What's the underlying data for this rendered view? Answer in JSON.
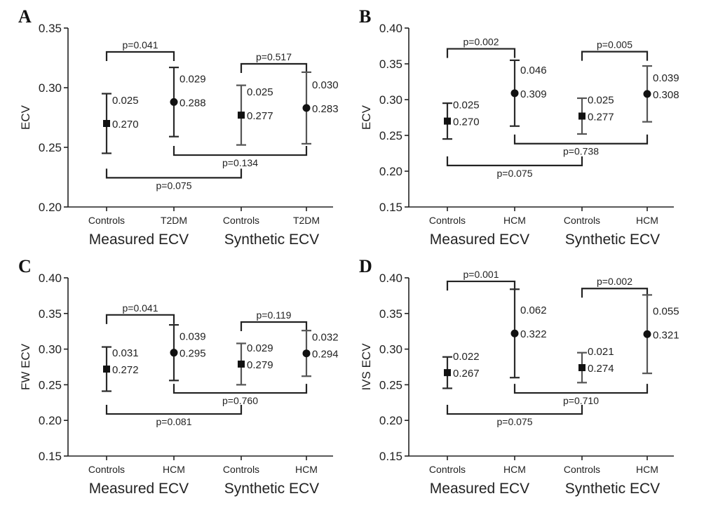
{
  "chart_data": [
    {
      "type": "scatter",
      "panel": "A",
      "ylabel": "ECV",
      "ylim": [
        0.2,
        0.35
      ],
      "yticks": [
        "0.20",
        "0.25",
        "0.30",
        "0.35"
      ],
      "categories": [
        "Controls",
        "T2DM",
        "Controls",
        "T2DM"
      ],
      "groups": [
        "Measured ECV",
        "Synthetic ECV"
      ],
      "points": [
        {
          "mean": 0.27,
          "sd": 0.025,
          "mean_label": "0.270",
          "sd_label": "0.025",
          "marker": "square",
          "color": "#2a2a2a"
        },
        {
          "mean": 0.288,
          "sd": 0.029,
          "mean_label": "0.288",
          "sd_label": "0.029",
          "marker": "circle",
          "color": "#2a2a2a"
        },
        {
          "mean": 0.277,
          "sd": 0.025,
          "mean_label": "0.277",
          "sd_label": "0.025",
          "marker": "square",
          "color": "#555555"
        },
        {
          "mean": 0.283,
          "sd": 0.03,
          "mean_label": "0.283",
          "sd_label": "0.030",
          "marker": "circle",
          "color": "#555555"
        }
      ],
      "comparisons": [
        {
          "from": 0,
          "to": 1,
          "label": "p=0.041",
          "level": 0.33,
          "dir": "up"
        },
        {
          "from": 2,
          "to": 3,
          "label": "p=0.517",
          "level": 0.32,
          "dir": "up"
        },
        {
          "from": 1,
          "to": 3,
          "label": "p=0.134",
          "level": 0.2435,
          "dir": "down"
        },
        {
          "from": 0,
          "to": 2,
          "label": "p=0.075",
          "level": 0.2245,
          "dir": "down"
        }
      ]
    },
    {
      "type": "scatter",
      "panel": "B",
      "ylabel": "ECV",
      "ylim": [
        0.15,
        0.4
      ],
      "yticks": [
        "0.15",
        "0.20",
        "0.25",
        "0.30",
        "0.35",
        "0.40"
      ],
      "categories": [
        "Controls",
        "HCM",
        "Controls",
        "HCM"
      ],
      "groups": [
        "Measured ECV",
        "Synthetic ECV"
      ],
      "points": [
        {
          "mean": 0.27,
          "sd": 0.025,
          "mean_label": "0.270",
          "sd_label": "0.025",
          "marker": "square",
          "color": "#2a2a2a"
        },
        {
          "mean": 0.309,
          "sd": 0.046,
          "mean_label": "0.309",
          "sd_label": "0.046",
          "marker": "circle",
          "color": "#2a2a2a"
        },
        {
          "mean": 0.277,
          "sd": 0.025,
          "mean_label": "0.277",
          "sd_label": "0.025",
          "marker": "square",
          "color": "#555555"
        },
        {
          "mean": 0.308,
          "sd": 0.039,
          "mean_label": "0.308",
          "sd_label": "0.039",
          "marker": "circle",
          "color": "#555555"
        }
      ],
      "comparisons": [
        {
          "from": 0,
          "to": 1,
          "label": "p=0.002",
          "level": 0.371,
          "dir": "up"
        },
        {
          "from": 2,
          "to": 3,
          "label": "p=0.005",
          "level": 0.367,
          "dir": "up"
        },
        {
          "from": 1,
          "to": 3,
          "label": "p=0.738",
          "level": 0.2385,
          "dir": "down"
        },
        {
          "from": 0,
          "to": 2,
          "label": "p=0.075",
          "level": 0.208,
          "dir": "down"
        }
      ]
    },
    {
      "type": "scatter",
      "panel": "C",
      "ylabel": "FW ECV",
      "ylim": [
        0.15,
        0.4
      ],
      "yticks": [
        "0.15",
        "0.20",
        "0.25",
        "0.30",
        "0.35",
        "0.40"
      ],
      "categories": [
        "Controls",
        "HCM",
        "Controls",
        "HCM"
      ],
      "groups": [
        "Measured ECV",
        "Synthetic ECV"
      ],
      "points": [
        {
          "mean": 0.272,
          "sd": 0.031,
          "mean_label": "0.272",
          "sd_label": "0.031",
          "marker": "square",
          "color": "#2a2a2a"
        },
        {
          "mean": 0.295,
          "sd": 0.039,
          "mean_label": "0.295",
          "sd_label": "0.039",
          "marker": "circle",
          "color": "#2a2a2a"
        },
        {
          "mean": 0.279,
          "sd": 0.029,
          "mean_label": "0.279",
          "sd_label": "0.029",
          "marker": "square",
          "color": "#555555"
        },
        {
          "mean": 0.294,
          "sd": 0.032,
          "mean_label": "0.294",
          "sd_label": "0.032",
          "marker": "circle",
          "color": "#555555"
        }
      ],
      "comparisons": [
        {
          "from": 0,
          "to": 1,
          "label": "p=0.041",
          "level": 0.348,
          "dir": "up"
        },
        {
          "from": 2,
          "to": 3,
          "label": "p=0.119",
          "level": 0.338,
          "dir": "up"
        },
        {
          "from": 1,
          "to": 3,
          "label": "p=0.760",
          "level": 0.2385,
          "dir": "down"
        },
        {
          "from": 0,
          "to": 2,
          "label": "p=0.081",
          "level": 0.209,
          "dir": "down"
        }
      ]
    },
    {
      "type": "scatter",
      "panel": "D",
      "ylabel": "IVS ECV",
      "ylim": [
        0.15,
        0.4
      ],
      "yticks": [
        "0.15",
        "0.20",
        "0.25",
        "0.30",
        "0.35",
        "0.40"
      ],
      "categories": [
        "Controls",
        "HCM",
        "Controls",
        "HCM"
      ],
      "groups": [
        "Measured ECV",
        "Synthetic ECV"
      ],
      "points": [
        {
          "mean": 0.267,
          "sd": 0.022,
          "mean_label": "0.267",
          "sd_label": "0.022",
          "marker": "square",
          "color": "#2a2a2a"
        },
        {
          "mean": 0.322,
          "sd": 0.062,
          "mean_label": "0.322",
          "sd_label": "0.062",
          "marker": "circle",
          "color": "#2a2a2a"
        },
        {
          "mean": 0.274,
          "sd": 0.021,
          "mean_label": "0.274",
          "sd_label": "0.021",
          "marker": "square",
          "color": "#555555"
        },
        {
          "mean": 0.321,
          "sd": 0.055,
          "mean_label": "0.321",
          "sd_label": "0.055",
          "marker": "circle",
          "color": "#555555"
        }
      ],
      "comparisons": [
        {
          "from": 0,
          "to": 1,
          "label": "p=0.001",
          "level": 0.395,
          "dir": "up"
        },
        {
          "from": 2,
          "to": 3,
          "label": "p=0.002",
          "level": 0.385,
          "dir": "up"
        },
        {
          "from": 1,
          "to": 3,
          "label": "p=0.710",
          "level": 0.2385,
          "dir": "down"
        },
        {
          "from": 0,
          "to": 2,
          "label": "p=0.075",
          "level": 0.209,
          "dir": "down"
        }
      ]
    }
  ]
}
